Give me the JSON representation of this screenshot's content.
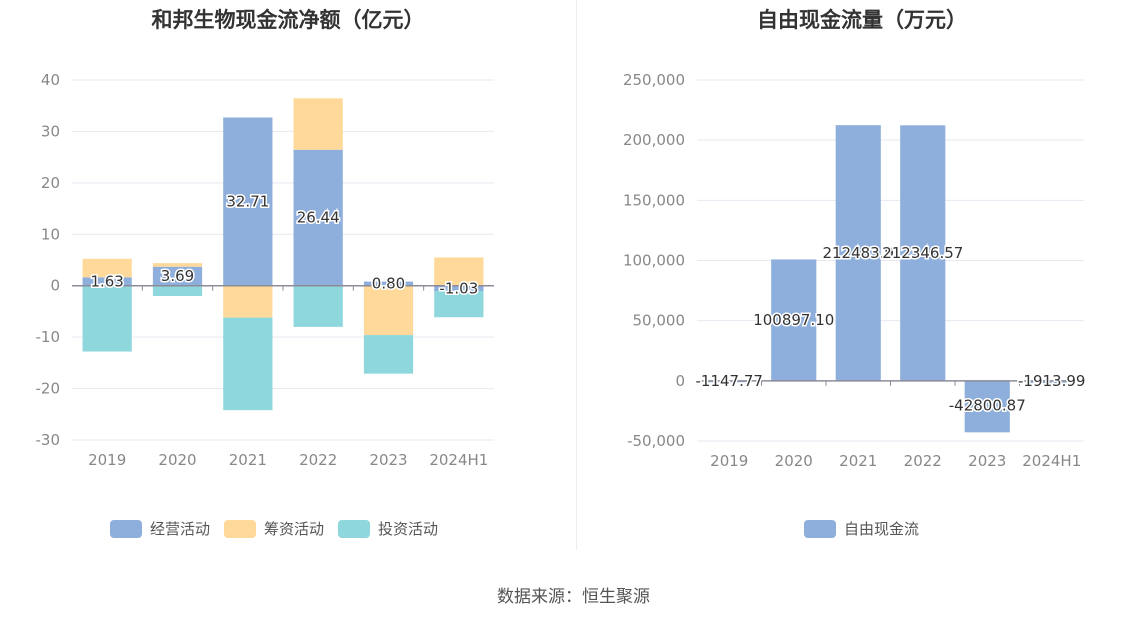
{
  "footer": {
    "source": "数据来源：恒生聚源"
  },
  "chart_data": [
    {
      "type": "bar",
      "stacked": true,
      "title": "和邦生物现金流净额（亿元）",
      "categories": [
        "2019",
        "2020",
        "2021",
        "2022",
        "2023",
        "2024H1"
      ],
      "ylim": [
        -30,
        40
      ],
      "yticks": [
        -30,
        -20,
        -10,
        0,
        10,
        20,
        30,
        40
      ],
      "grid": true,
      "legend_position": "bottom",
      "series": [
        {
          "name": "经营活动",
          "color": "#8eaedb",
          "values": [
            1.63,
            3.69,
            32.71,
            26.44,
            0.8,
            -1.03
          ],
          "labels": [
            "1.63",
            "3.69",
            "32.71",
            "26.44",
            "0.80",
            "-1.03"
          ]
        },
        {
          "name": "筹资活动",
          "color": "#ffd99a",
          "values": [
            3.6,
            0.7,
            -6.2,
            10.0,
            -9.6,
            5.5
          ]
        },
        {
          "name": "投资活动",
          "color": "#8dd7dd",
          "values": [
            -12.8,
            -2.0,
            -18.0,
            -8.0,
            -7.5,
            -5.1
          ]
        }
      ]
    },
    {
      "type": "bar",
      "title": "自由现金流量（万元）",
      "categories": [
        "2019",
        "2020",
        "2021",
        "2022",
        "2023",
        "2024H1"
      ],
      "ylim": [
        -50000,
        250000
      ],
      "yticks": [
        -50000,
        0,
        50000,
        100000,
        150000,
        200000,
        250000
      ],
      "ytick_labels": [
        "-50,000",
        "0",
        "50,000",
        "100,000",
        "150,000",
        "200,000",
        "250,000"
      ],
      "grid": true,
      "legend_position": "bottom",
      "series": [
        {
          "name": "自由现金流",
          "color": "#8eaedb",
          "values": [
            -1147.77,
            100897.1,
            212483.9,
            212346.57,
            -42800.87,
            -1913.99
          ],
          "labels": [
            "-1147.77",
            "100897.10",
            "212483.9",
            "212346.57",
            "-42800.87",
            "-1913.99"
          ]
        }
      ]
    }
  ]
}
